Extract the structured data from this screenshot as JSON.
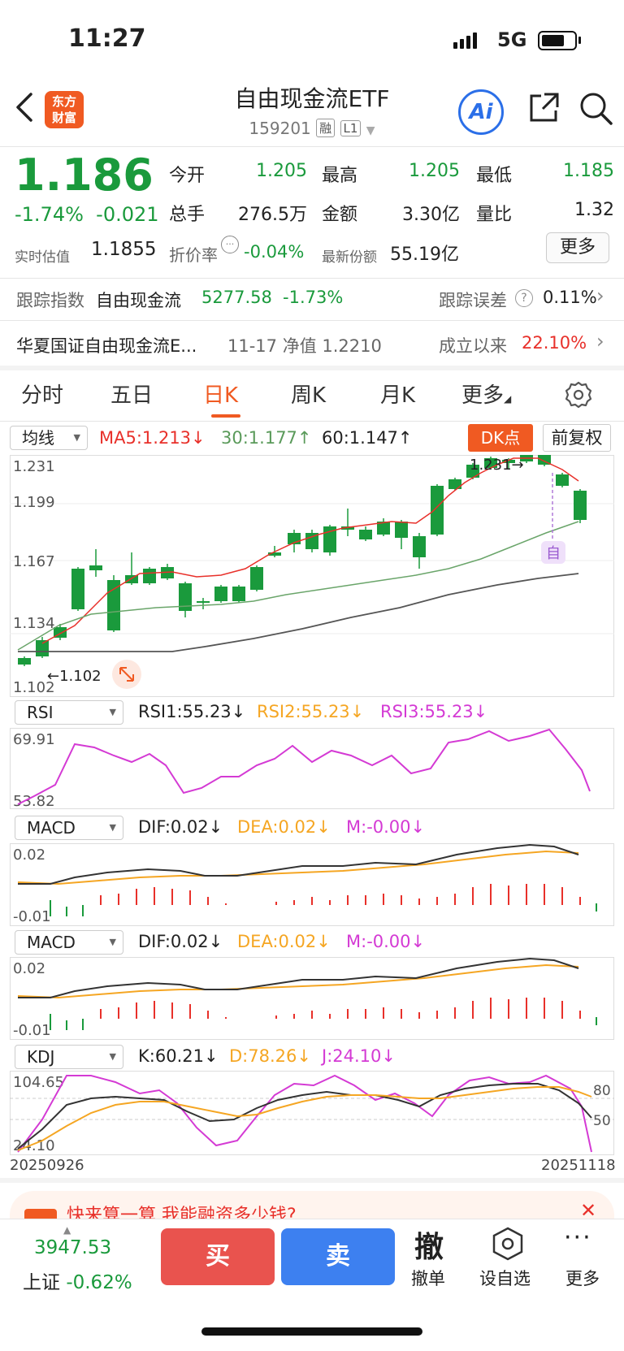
{
  "status_bar": {
    "time": "11:27",
    "network": "5G"
  },
  "header": {
    "logo_line1": "东方",
    "logo_line2": "财富",
    "title": "自由现金流ETF",
    "code": "159201",
    "tag1": "融",
    "tag2": "L1",
    "ai_label": "Ai"
  },
  "quote": {
    "price": "1.186",
    "change_pct": "-1.74%",
    "change": "-0.021",
    "fields": [
      {
        "label": "今开",
        "value": "1.205"
      },
      {
        "label": "最高",
        "value": "1.205"
      },
      {
        "label": "最低",
        "value": "1.185"
      },
      {
        "label": "总手",
        "value": "276.5万"
      },
      {
        "label": "金额",
        "value": "3.30亿"
      },
      {
        "label": "量比",
        "value": "1.32"
      }
    ],
    "realtime_label": "实时估值",
    "realtime_value": "1.1855",
    "premium_label": "折价率",
    "premium_value": "-0.04%",
    "shares_label": "最新份额",
    "shares_value": "55.19亿",
    "more_label": "更多"
  },
  "tracking": {
    "label": "跟踪指数",
    "index_name": "自由现金流",
    "index_value": "5277.58",
    "index_change": "-1.73%",
    "error_label": "跟踪误差",
    "error_value": "0.11%"
  },
  "fund": {
    "name": "华夏国证自由现金流E...",
    "nav": "11-17 净值 1.2210",
    "since_label": "成立以来",
    "since_value": "22.10%"
  },
  "tabs": [
    "分时",
    "五日",
    "日K",
    "周K",
    "月K",
    "更多"
  ],
  "kline": {
    "selector": "均线",
    "ma5": "MA5:1.213",
    "ma30": "30:1.177",
    "ma60": "60:1.147",
    "dk_label": "DK点",
    "restore_label": "前复权",
    "y_labels": [
      "1.231",
      "1.199",
      "1.167",
      "1.134",
      "1.102"
    ],
    "high_marker": "1.231",
    "low_marker": "1.102",
    "self_marker": "自"
  },
  "rsi": {
    "selector": "RSI",
    "rsi1": "RSI1:55.23",
    "rsi2": "RSI2:55.23",
    "rsi3": "RSI3:55.23",
    "y_top": "69.91",
    "y_bottom": "53.82"
  },
  "macd1": {
    "selector": "MACD",
    "dif": "DIF:0.02",
    "dea": "DEA:0.02",
    "m": "M:-0.00",
    "y_top": "0.02",
    "y_bottom": "-0.01"
  },
  "macd2": {
    "selector": "MACD",
    "dif": "DIF:0.02",
    "dea": "DEA:0.02",
    "m": "M:-0.00",
    "y_top": "0.02",
    "y_bottom": "-0.01"
  },
  "kdj": {
    "selector": "KDJ",
    "k": "K:60.21",
    "d": "D:78.26",
    "j": "J:24.10",
    "y_top": "104.65",
    "y_bottom": "24.10",
    "ref80": "80",
    "ref50": "50"
  },
  "date_axis": {
    "start": "20250926",
    "end": "20251118"
  },
  "banner": {
    "text": "快来算一算 我能融资多少钱?"
  },
  "bottom": {
    "index_value": "3947.53",
    "index_name": "上证",
    "index_change": "-0.62%",
    "buy": "买",
    "sell": "卖",
    "cancel_icon": "撤",
    "cancel": "撤单",
    "watchlist": "设自选",
    "more": "更多"
  },
  "colors": {
    "up": "#e8302a",
    "down": "#1a9a3c",
    "accent": "#f05a22"
  }
}
